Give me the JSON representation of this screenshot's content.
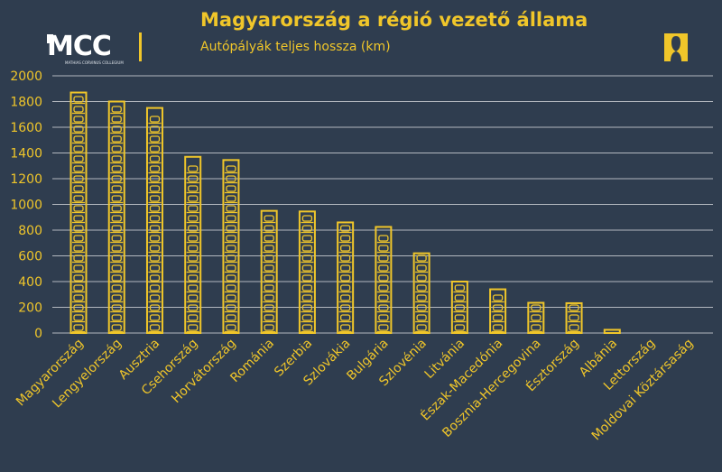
{
  "header": {
    "title": "Magyarország a régió vezető állama",
    "subtitle": "Autópályák teljes hossza (km)",
    "logo_text": "MCC",
    "logo_subtext": "MATHIAS CORVINUS COLLEGIUM"
  },
  "colors": {
    "background": "#2f3d4f",
    "accent": "#f0c62a",
    "grid": "#ffffff",
    "text": "#f0c62a"
  },
  "icons": {
    "corner": "person-silhouette-icon"
  },
  "chart_data": {
    "type": "bar",
    "title": "Magyarország a régió vezető állama",
    "subtitle": "Autópályák teljes hossza (km)",
    "xlabel": "",
    "ylabel": "",
    "ylim": [
      0,
      2000
    ],
    "yticks": [
      0,
      200,
      400,
      600,
      800,
      1000,
      1200,
      1400,
      1600,
      1800,
      2000
    ],
    "grid": true,
    "legend": "none",
    "categories": [
      "Magyarország",
      "Lengyelország",
      "Ausztria",
      "Csehország",
      "Horvátország",
      "Románia",
      "Szerbia",
      "Szlovákia",
      "Bulgária",
      "Szlovénia",
      "Litvánia",
      "Észak-Macedónia",
      "Bosznia-Hercegovina",
      "Észtország",
      "Albánia",
      "Lettország",
      "Moldovai Köztársaság"
    ],
    "values": [
      1870,
      1800,
      1750,
      1370,
      1345,
      950,
      945,
      860,
      825,
      620,
      400,
      340,
      235,
      232,
      25,
      0,
      0
    ]
  }
}
